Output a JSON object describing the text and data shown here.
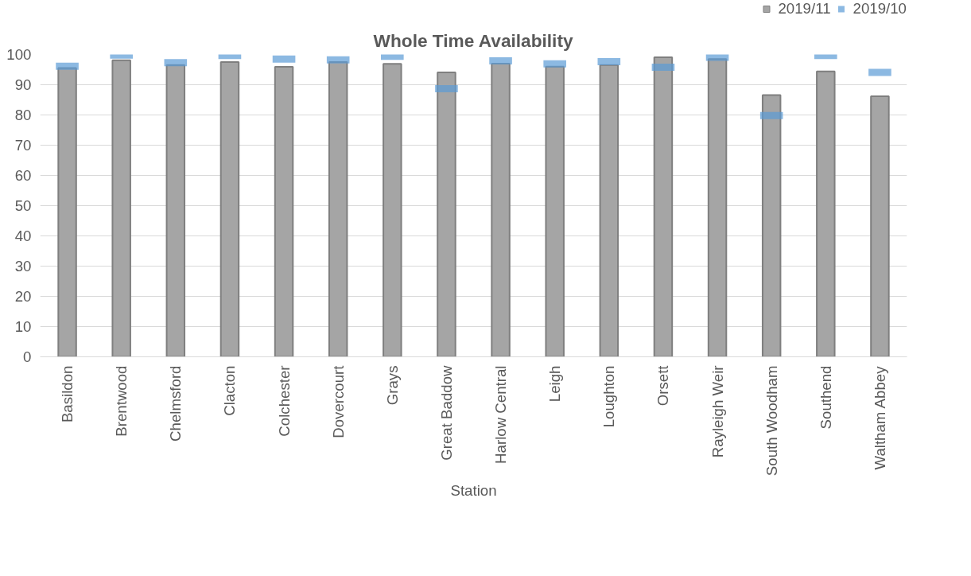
{
  "chart_data": {
    "type": "bar",
    "title": "Whole Time Availability",
    "xlabel": "Station",
    "categories": [
      "Basildon",
      "Brentwood",
      "Chelmsford",
      "Clacton",
      "Colchester",
      "Dovercourt",
      "Grays",
      "Great Baddow",
      "Harlow Central",
      "Leigh",
      "Loughton",
      "Orsett",
      "Rayleigh Weir",
      "South Woodham",
      "Southend",
      "Waltham Abbey"
    ],
    "series": [
      {
        "name": "2019/11",
        "type": "bar",
        "color": "#a5a5a5",
        "values": [
          95.5,
          98.1,
          96.5,
          97.5,
          95.9,
          97.5,
          96.9,
          94.1,
          97,
          96,
          96.5,
          99.1,
          98.5,
          86.6,
          94.4,
          86.2
        ]
      },
      {
        "name": "2019/10",
        "type": "scatter",
        "marker": "square",
        "color": "#5b9bd5",
        "values": [
          96.1,
          99.8,
          97.3,
          99.7,
          98.5,
          98.2,
          99.4,
          88.7,
          97.9,
          96.9,
          97.6,
          95.8,
          99.1,
          79.8,
          99.7,
          94.1
        ]
      }
    ],
    "ylim": [
      0,
      100
    ],
    "yticks": [
      0,
      10,
      20,
      30,
      40,
      50,
      60,
      70,
      80,
      90,
      100
    ],
    "grid": "y",
    "legend": "top right"
  }
}
